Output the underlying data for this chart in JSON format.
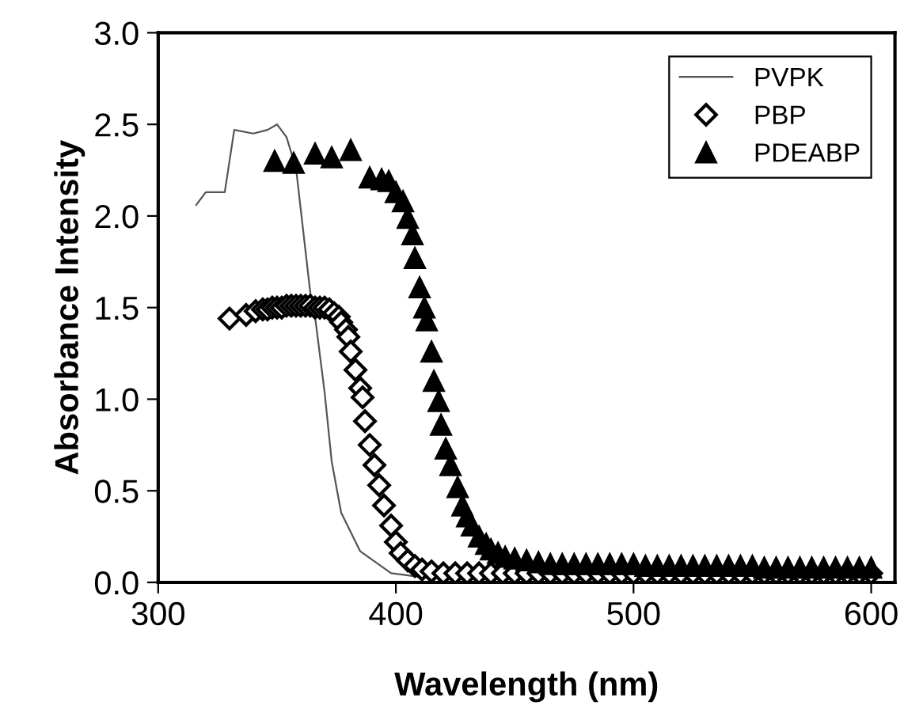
{
  "chart_data": {
    "type": "line",
    "xlabel": "Wavelength (nm)",
    "ylabel": "Absorbance Intensity",
    "xlim": [
      300,
      610
    ],
    "xticks": [
      300,
      400,
      500,
      600
    ],
    "ylim": [
      0,
      3.0
    ],
    "yticks": [
      {
        "value": 0,
        "label": "0.0"
      },
      {
        "value": 0.5,
        "label": "0.5"
      },
      {
        "value": 1.0,
        "label": "1.0"
      },
      {
        "value": 1.5,
        "label": "1.5"
      },
      {
        "value": 2.0,
        "label": "2.0"
      },
      {
        "value": 2.5,
        "label": "2.5"
      },
      {
        "value": 3.0,
        "label": "3.0"
      }
    ],
    "grid": false,
    "legend": "top right",
    "series": [
      {
        "name": "PVPK",
        "color": "#555555",
        "marker": "none",
        "line_style": "solid",
        "x": [
          316,
          320,
          328,
          332,
          340,
          346,
          350,
          354,
          358,
          364,
          366,
          370,
          373,
          377,
          385,
          398,
          410,
          420,
          450,
          500,
          550,
          600
        ],
        "values": [
          2.06,
          2.13,
          2.13,
          2.47,
          2.45,
          2.47,
          2.5,
          2.43,
          2.26,
          1.58,
          1.45,
          1.04,
          0.66,
          0.38,
          0.17,
          0.05,
          0.03,
          0.02,
          0.02,
          0.02,
          0.02,
          0.02
        ]
      },
      {
        "name": "PBP",
        "type": "scatter",
        "color": "#000000",
        "marker": "diamond",
        "x": [
          330,
          337,
          341,
          344,
          346,
          348,
          350,
          352,
          354,
          356,
          358,
          360,
          362,
          364,
          366,
          368,
          370,
          372,
          374,
          376,
          377,
          379,
          380,
          381,
          383,
          385,
          386,
          387,
          389,
          391,
          393,
          395,
          398,
          400,
          402,
          405,
          408,
          411,
          415,
          420,
          425,
          430,
          435,
          440,
          445,
          450,
          455,
          460,
          465,
          470,
          475,
          480,
          485,
          490,
          495,
          500,
          505,
          510,
          515,
          520,
          525,
          530,
          535,
          540,
          545,
          550,
          555,
          560,
          565,
          570,
          575,
          580,
          585,
          590,
          595,
          600
        ],
        "values": [
          1.44,
          1.46,
          1.48,
          1.49,
          1.49,
          1.5,
          1.5,
          1.5,
          1.51,
          1.51,
          1.51,
          1.51,
          1.51,
          1.51,
          1.5,
          1.5,
          1.5,
          1.49,
          1.47,
          1.45,
          1.42,
          1.38,
          1.34,
          1.26,
          1.16,
          1.06,
          1.01,
          0.88,
          0.75,
          0.64,
          0.53,
          0.42,
          0.31,
          0.22,
          0.16,
          0.12,
          0.09,
          0.07,
          0.06,
          0.05,
          0.05,
          0.05,
          0.05,
          0.05,
          0.05,
          0.05,
          0.05,
          0.05,
          0.05,
          0.05,
          0.05,
          0.05,
          0.05,
          0.05,
          0.05,
          0.05,
          0.05,
          0.05,
          0.05,
          0.05,
          0.05,
          0.05,
          0.05,
          0.05,
          0.05,
          0.05,
          0.05,
          0.05,
          0.05,
          0.05,
          0.05,
          0.05,
          0.05,
          0.05,
          0.05,
          0.05
        ]
      },
      {
        "name": "PDEABP",
        "type": "scatter",
        "color": "#000000",
        "marker": "triangle",
        "x": [
          349,
          357,
          366,
          373,
          381,
          389,
          394,
          397,
          400,
          403,
          405,
          407,
          408,
          410,
          412,
          413,
          415,
          416,
          418,
          419,
          421,
          423,
          426,
          428,
          430,
          432,
          435,
          438,
          440,
          443,
          446,
          450,
          455,
          460,
          465,
          470,
          475,
          480,
          485,
          490,
          495,
          500,
          505,
          510,
          515,
          520,
          525,
          530,
          535,
          540,
          545,
          550,
          555,
          560,
          565,
          570,
          575,
          580,
          585,
          590,
          595,
          600
        ],
        "values": [
          2.3,
          2.29,
          2.34,
          2.32,
          2.36,
          2.21,
          2.2,
          2.19,
          2.13,
          2.08,
          1.99,
          1.9,
          1.77,
          1.61,
          1.5,
          1.43,
          1.26,
          1.1,
          0.99,
          0.86,
          0.73,
          0.64,
          0.52,
          0.42,
          0.36,
          0.31,
          0.25,
          0.21,
          0.18,
          0.16,
          0.14,
          0.13,
          0.12,
          0.11,
          0.1,
          0.1,
          0.1,
          0.1,
          0.1,
          0.1,
          0.1,
          0.1,
          0.09,
          0.09,
          0.09,
          0.09,
          0.09,
          0.09,
          0.09,
          0.09,
          0.09,
          0.09,
          0.08,
          0.08,
          0.08,
          0.08,
          0.08,
          0.08,
          0.08,
          0.08,
          0.08,
          0.08
        ]
      }
    ]
  }
}
